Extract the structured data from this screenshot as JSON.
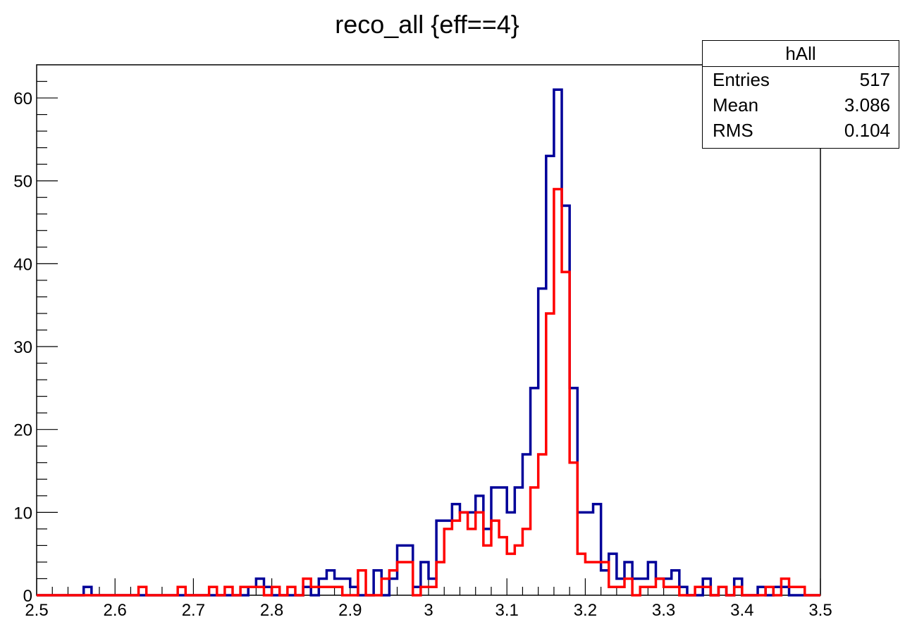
{
  "chart_data": {
    "type": "histogram",
    "title": "reco_all {eff==4}",
    "xlim": [
      2.5,
      3.5
    ],
    "ylim": [
      0,
      64
    ],
    "bin_width": 0.01,
    "x_ticks": [
      "2.5",
      "2.6",
      "2.7",
      "2.8",
      "2.9",
      "3",
      "3.1",
      "3.2",
      "3.3",
      "3.4",
      "3.5"
    ],
    "y_ticks": [
      "0",
      "10",
      "20",
      "30",
      "40",
      "50",
      "60"
    ],
    "grid": false,
    "legend": "top-right",
    "series": [
      {
        "color": "#000099",
        "values": [
          0,
          0,
          0,
          0,
          0,
          0,
          1,
          0,
          0,
          0,
          0,
          0,
          0,
          0,
          0,
          0,
          0,
          0,
          0,
          0,
          0,
          0,
          0,
          0,
          0,
          0,
          0,
          1,
          2,
          1,
          0,
          0,
          0,
          0,
          1,
          0,
          2,
          3,
          2,
          2,
          1,
          0,
          0,
          3,
          0,
          2,
          6,
          6,
          1,
          4,
          2,
          9,
          9,
          11,
          10,
          10,
          12,
          8,
          13,
          13,
          10,
          13,
          17,
          25,
          37,
          53,
          61,
          47,
          25,
          10,
          10,
          11,
          3,
          5,
          2,
          4,
          2,
          2,
          4,
          2,
          2,
          3,
          1,
          0,
          0,
          2,
          0,
          1,
          0,
          2,
          0,
          0,
          1,
          0,
          1,
          1,
          0,
          0,
          0,
          0
        ]
      },
      {
        "color": "#ff0000",
        "values": [
          0,
          0,
          0,
          0,
          0,
          0,
          0,
          0,
          0,
          0,
          0,
          0,
          0,
          1,
          0,
          0,
          0,
          0,
          1,
          0,
          0,
          0,
          1,
          0,
          1,
          0,
          1,
          1,
          1,
          0,
          1,
          0,
          1,
          0,
          2,
          1,
          1,
          1,
          1,
          0,
          0,
          3,
          0,
          0,
          2,
          3,
          4,
          4,
          0,
          1,
          1,
          4,
          8,
          9,
          10,
          8,
          10,
          6,
          9,
          7,
          5,
          6,
          8,
          13,
          17,
          34,
          49,
          39,
          16,
          5,
          4,
          4,
          4,
          1,
          1,
          2,
          0,
          1,
          1,
          2,
          1,
          1,
          0,
          0,
          1,
          1,
          0,
          1,
          0,
          1,
          0,
          0,
          0,
          1,
          0,
          2,
          1,
          1,
          0,
          0
        ]
      }
    ]
  },
  "stats": {
    "name": "hAll",
    "rows": [
      {
        "label": "Entries",
        "value": "517"
      },
      {
        "label": "Mean",
        "value": "3.086"
      },
      {
        "label": "RMS",
        "value": "0.104"
      }
    ]
  }
}
